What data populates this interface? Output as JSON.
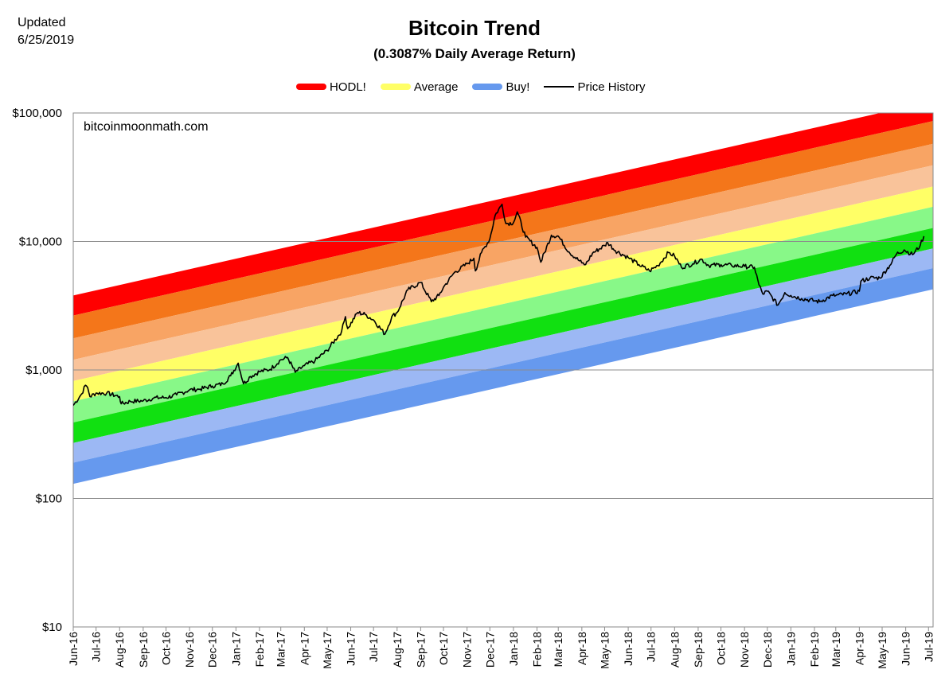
{
  "header": {
    "updated_label": "Updated",
    "updated_date": "6/25/2019",
    "title": "Bitcoin Trend",
    "subtitle": "(0.3087% Daily Average Return)",
    "watermark": "bitcoinmoonmath.com"
  },
  "legend": [
    {
      "name": "HODL!",
      "color": "#ff0000",
      "kind": "band"
    },
    {
      "name": "Average",
      "color": "#ffff66",
      "kind": "band"
    },
    {
      "name": "Buy!",
      "color": "#6699ee",
      "kind": "band"
    },
    {
      "name": "Price History",
      "color": "#000000",
      "kind": "line"
    }
  ],
  "chart_data": {
    "type": "area",
    "title": "Bitcoin Trend",
    "subtitle": "(0.3087% Daily Average Return)",
    "y_scale": "log",
    "ylim": [
      10,
      100000
    ],
    "y_ticks": [
      "$10",
      "$100",
      "$1,000",
      "$10,000",
      "$100,000"
    ],
    "x_ticks": [
      "Jun-16",
      "Jul-16",
      "Aug-16",
      "Sep-16",
      "Oct-16",
      "Nov-16",
      "Dec-16",
      "Jan-17",
      "Feb-17",
      "Mar-17",
      "Apr-17",
      "May-17",
      "Jun-17",
      "Jul-17",
      "Aug-17",
      "Sep-17",
      "Oct-17",
      "Nov-17",
      "Dec-17",
      "Jan-18",
      "Feb-18",
      "Mar-18",
      "Apr-18",
      "May-18",
      "Jun-18",
      "Jul-18",
      "Aug-18",
      "Sep-18",
      "Oct-18",
      "Nov-18",
      "Dec-18",
      "Jan-19",
      "Feb-19",
      "Mar-19",
      "Apr-19",
      "May-19",
      "Jun-19",
      "Jul-19"
    ],
    "xlim": [
      "2016-06-01",
      "2019-07-07"
    ],
    "grid": "horizontal",
    "legend_position": "top",
    "bands": {
      "start_date": "2016-06-01",
      "end_date": "2019-07-07",
      "daily_return": 0.003087,
      "boundaries_at_start": [
        3800,
        2650,
        1760,
        1200,
        820,
        570,
        390,
        270,
        190,
        130
      ],
      "colors": [
        "#ff0000",
        "#f4761a",
        "#f8a464",
        "#f9c39a",
        "#ffff66",
        "#88f888",
        "#11e011",
        "#9cb8f4",
        "#6699ee"
      ]
    },
    "series": [
      {
        "name": "Price History",
        "color": "#000000",
        "points": [
          [
            "2016-06-01",
            530
          ],
          [
            "2016-06-12",
            650
          ],
          [
            "2016-06-17",
            760
          ],
          [
            "2016-06-20",
            730
          ],
          [
            "2016-06-23",
            620
          ],
          [
            "2016-07-01",
            660
          ],
          [
            "2016-07-15",
            660
          ],
          [
            "2016-08-01",
            620
          ],
          [
            "2016-08-03",
            545
          ],
          [
            "2016-08-15",
            570
          ],
          [
            "2016-09-01",
            575
          ],
          [
            "2016-09-15",
            605
          ],
          [
            "2016-10-01",
            610
          ],
          [
            "2016-10-15",
            640
          ],
          [
            "2016-11-01",
            700
          ],
          [
            "2016-11-15",
            710
          ],
          [
            "2016-12-01",
            750
          ],
          [
            "2016-12-15",
            780
          ],
          [
            "2016-12-25",
            900
          ],
          [
            "2017-01-04",
            1130
          ],
          [
            "2017-01-11",
            780
          ],
          [
            "2017-01-20",
            890
          ],
          [
            "2017-02-01",
            970
          ],
          [
            "2017-02-15",
            1010
          ],
          [
            "2017-03-01",
            1200
          ],
          [
            "2017-03-10",
            1250
          ],
          [
            "2017-03-20",
            960
          ],
          [
            "2017-04-01",
            1080
          ],
          [
            "2017-04-15",
            1180
          ],
          [
            "2017-05-01",
            1420
          ],
          [
            "2017-05-20",
            2000
          ],
          [
            "2017-05-25",
            2600
          ],
          [
            "2017-05-28",
            2100
          ],
          [
            "2017-06-10",
            2800
          ],
          [
            "2017-06-20",
            2700
          ],
          [
            "2017-07-01",
            2450
          ],
          [
            "2017-07-16",
            1900
          ],
          [
            "2017-07-25",
            2600
          ],
          [
            "2017-08-01",
            2800
          ],
          [
            "2017-08-15",
            4200
          ],
          [
            "2017-09-01",
            4800
          ],
          [
            "2017-09-15",
            3400
          ],
          [
            "2017-09-25",
            3800
          ],
          [
            "2017-10-01",
            4400
          ],
          [
            "2017-10-15",
            5700
          ],
          [
            "2017-11-01",
            6700
          ],
          [
            "2017-11-10",
            7400
          ],
          [
            "2017-11-12",
            5900
          ],
          [
            "2017-11-20",
            8200
          ],
          [
            "2017-12-01",
            10500
          ],
          [
            "2017-12-08",
            16000
          ],
          [
            "2017-12-17",
            19500
          ],
          [
            "2017-12-22",
            13800
          ],
          [
            "2018-01-01",
            14000
          ],
          [
            "2018-01-06",
            17000
          ],
          [
            "2018-01-17",
            10800
          ],
          [
            "2018-02-01",
            9000
          ],
          [
            "2018-02-06",
            6900
          ],
          [
            "2018-02-20",
            11200
          ],
          [
            "2018-03-01",
            11000
          ],
          [
            "2018-03-15",
            8300
          ],
          [
            "2018-04-01",
            6800
          ],
          [
            "2018-04-06",
            6600
          ],
          [
            "2018-04-15",
            8100
          ],
          [
            "2018-05-01",
            9300
          ],
          [
            "2018-05-05",
            9800
          ],
          [
            "2018-05-15",
            8500
          ],
          [
            "2018-06-01",
            7500
          ],
          [
            "2018-06-15",
            6600
          ],
          [
            "2018-06-29",
            5900
          ],
          [
            "2018-07-10",
            6500
          ],
          [
            "2018-07-24",
            8200
          ],
          [
            "2018-08-01",
            7700
          ],
          [
            "2018-08-10",
            6300
          ],
          [
            "2018-08-25",
            6700
          ],
          [
            "2018-09-05",
            7300
          ],
          [
            "2018-09-15",
            6500
          ],
          [
            "2018-10-01",
            6600
          ],
          [
            "2018-10-15",
            6500
          ],
          [
            "2018-11-01",
            6400
          ],
          [
            "2018-11-14",
            6300
          ],
          [
            "2018-11-20",
            4600
          ],
          [
            "2018-11-25",
            3900
          ],
          [
            "2018-12-01",
            4100
          ],
          [
            "2018-12-15",
            3200
          ],
          [
            "2018-12-24",
            4000
          ],
          [
            "2019-01-01",
            3800
          ],
          [
            "2019-01-15",
            3600
          ],
          [
            "2019-02-01",
            3450
          ],
          [
            "2019-02-08",
            3400
          ],
          [
            "2019-02-25",
            3800
          ],
          [
            "2019-03-01",
            3800
          ],
          [
            "2019-03-15",
            3900
          ],
          [
            "2019-04-01",
            4100
          ],
          [
            "2019-04-03",
            4900
          ],
          [
            "2019-04-15",
            5200
          ],
          [
            "2019-04-28",
            5200
          ],
          [
            "2019-05-11",
            6500
          ],
          [
            "2019-05-20",
            8000
          ],
          [
            "2019-05-30",
            8600
          ],
          [
            "2019-06-10",
            7900
          ],
          [
            "2019-06-20",
            9300
          ],
          [
            "2019-06-25",
            11000
          ]
        ]
      }
    ]
  }
}
